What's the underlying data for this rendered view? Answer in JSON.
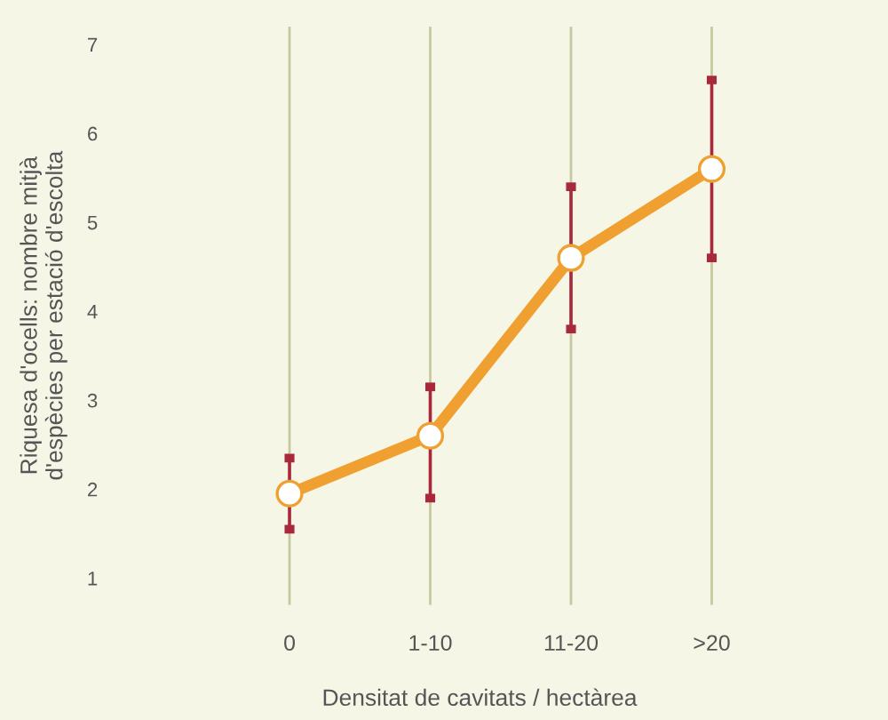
{
  "chart_data": {
    "type": "line",
    "xlabel": "Densitat de cavitats / hectàrea",
    "ylabel": "Riquesa d'ocells: nombre mitjà\nd'espècies per estació d'escolta",
    "categories": [
      "0",
      "1-10",
      "11-20",
      ">20"
    ],
    "series": [
      {
        "color": "#f0a030",
        "values": [
          1.95,
          2.6,
          4.6,
          5.6
        ],
        "errors": [
          [
            1.55,
            2.35
          ],
          [
            1.9,
            3.15
          ],
          [
            3.8,
            5.4
          ],
          [
            4.6,
            6.6
          ]
        ]
      }
    ],
    "ylim": [
      0.7,
      7.2
    ],
    "yticks": [
      1,
      2,
      3,
      4,
      5,
      6,
      7
    ],
    "grid": "x",
    "marker": "circle",
    "line_style": "solid"
  }
}
